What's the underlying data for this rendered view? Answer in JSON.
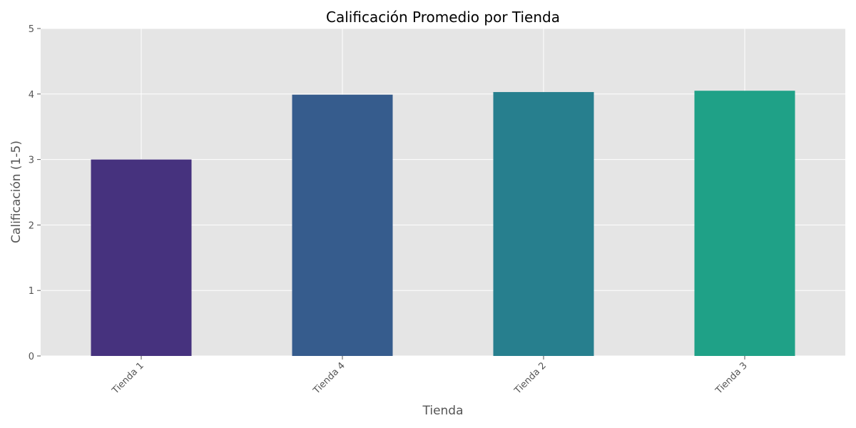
{
  "chart_data": {
    "type": "bar",
    "title": "Calificación Promedio por Tienda",
    "xlabel": "Tienda",
    "ylabel": "Calificación (1-5)",
    "categories": [
      "Tienda 1",
      "Tienda 4",
      "Tienda 2",
      "Tienda 3"
    ],
    "values": [
      3.0,
      3.99,
      4.03,
      4.05
    ],
    "colors": [
      "#46327e",
      "#365c8d",
      "#277f8e",
      "#1fa187"
    ],
    "ylim": [
      0,
      5
    ],
    "yticks": [
      "0",
      "1",
      "2",
      "3",
      "4",
      "5"
    ],
    "grid": true,
    "plot_background": "#e5e5e5",
    "grid_color": "#ffffff"
  }
}
